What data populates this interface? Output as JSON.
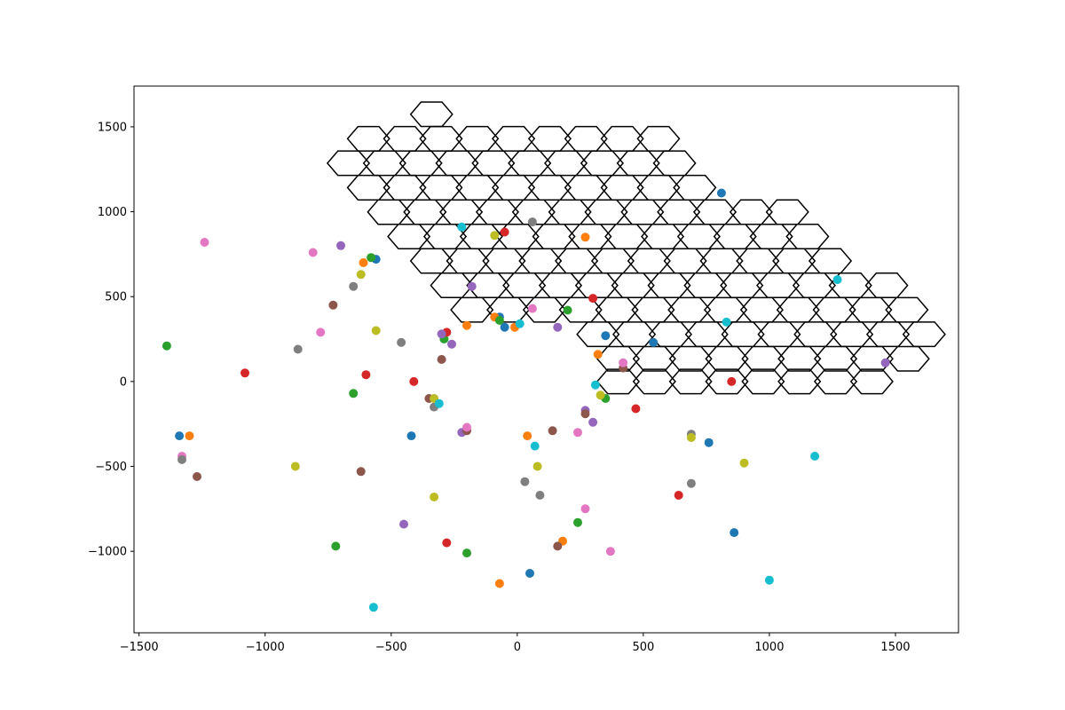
{
  "chart_data": {
    "type": "scatter",
    "title": "",
    "xlabel": "",
    "ylabel": "",
    "xlim": [
      -1520,
      1750
    ],
    "ylim": [
      -1480,
      1740
    ],
    "x_ticks": [
      -1500,
      -1000,
      -500,
      0,
      500,
      1000,
      1500
    ],
    "x_tick_labels": [
      "−1500",
      "−1000",
      "−500",
      "0",
      "500",
      "1000",
      "1500"
    ],
    "y_ticks": [
      -1000,
      -500,
      0,
      500,
      1000,
      1500
    ],
    "y_tick_labels": [
      "−1000",
      "−500",
      "0",
      "500",
      "1000",
      "1500"
    ],
    "grid": false,
    "legend": "none",
    "overlay": {
      "type": "hexagonal-grid",
      "stroke_color": "#000000",
      "hex_radius": 83,
      "hex_origin": [
        -590,
        1430
      ],
      "rows": [
        {
          "y": 1574,
          "x_start": -340,
          "x_end": -340
        },
        {
          "y": 1430,
          "x_start": -590,
          "x_end": 500
        },
        {
          "y": 1286,
          "x_start": -670,
          "x_end": 580
        },
        {
          "y": 1142,
          "x_start": -590,
          "x_end": 750
        },
        {
          "y": 998,
          "x_start": -510,
          "x_end": 1080
        },
        {
          "y": 854,
          "x_start": -430,
          "x_end": 1160
        },
        {
          "y": 710,
          "x_start": -340,
          "x_end": 1240
        },
        {
          "y": 566,
          "x_start": -260,
          "x_end": 1410
        },
        {
          "y": 422,
          "x_start": -180,
          "x_end": 1490
        },
        {
          "y": 278,
          "x_start": 320,
          "x_end": 1570
        },
        {
          "y": 134,
          "x_start": 400,
          "x_end": 1490
        },
        {
          "y": 0,
          "x_start": 400,
          "x_end": 1410
        }
      ]
    },
    "points": [
      {
        "x": 810,
        "y": 1110,
        "color": "#1f77b4"
      },
      {
        "x": -560,
        "y": 720,
        "color": "#1f77b4"
      },
      {
        "x": -70,
        "y": 380,
        "color": "#1f77b4"
      },
      {
        "x": -50,
        "y": 320,
        "color": "#1f77b4"
      },
      {
        "x": 350,
        "y": 270,
        "color": "#1f77b4"
      },
      {
        "x": 540,
        "y": 230,
        "color": "#1f77b4"
      },
      {
        "x": -1340,
        "y": -320,
        "color": "#1f77b4"
      },
      {
        "x": -420,
        "y": -320,
        "color": "#1f77b4"
      },
      {
        "x": 760,
        "y": -360,
        "color": "#1f77b4"
      },
      {
        "x": 860,
        "y": -890,
        "color": "#1f77b4"
      },
      {
        "x": 50,
        "y": -1130,
        "color": "#1f77b4"
      },
      {
        "x": 270,
        "y": 850,
        "color": "#ff7f0e"
      },
      {
        "x": -610,
        "y": 700,
        "color": "#ff7f0e"
      },
      {
        "x": -200,
        "y": 330,
        "color": "#ff7f0e"
      },
      {
        "x": -90,
        "y": 380,
        "color": "#ff7f0e"
      },
      {
        "x": -10,
        "y": 320,
        "color": "#ff7f0e"
      },
      {
        "x": 320,
        "y": 160,
        "color": "#ff7f0e"
      },
      {
        "x": -1300,
        "y": -320,
        "color": "#ff7f0e"
      },
      {
        "x": 40,
        "y": -320,
        "color": "#ff7f0e"
      },
      {
        "x": 180,
        "y": -940,
        "color": "#ff7f0e"
      },
      {
        "x": -70,
        "y": -1190,
        "color": "#ff7f0e"
      },
      {
        "x": -580,
        "y": 730,
        "color": "#2ca02c"
      },
      {
        "x": -70,
        "y": 360,
        "color": "#2ca02c"
      },
      {
        "x": 200,
        "y": 420,
        "color": "#2ca02c"
      },
      {
        "x": -290,
        "y": 250,
        "color": "#2ca02c"
      },
      {
        "x": -1390,
        "y": 210,
        "color": "#2ca02c"
      },
      {
        "x": -650,
        "y": -70,
        "color": "#2ca02c"
      },
      {
        "x": 350,
        "y": -100,
        "color": "#2ca02c"
      },
      {
        "x": 240,
        "y": -830,
        "color": "#2ca02c"
      },
      {
        "x": -720,
        "y": -970,
        "color": "#2ca02c"
      },
      {
        "x": -200,
        "y": -1010,
        "color": "#2ca02c"
      },
      {
        "x": -50,
        "y": 880,
        "color": "#d62728"
      },
      {
        "x": 300,
        "y": 490,
        "color": "#d62728"
      },
      {
        "x": -280,
        "y": 290,
        "color": "#d62728"
      },
      {
        "x": -1080,
        "y": 50,
        "color": "#d62728"
      },
      {
        "x": -600,
        "y": 40,
        "color": "#d62728"
      },
      {
        "x": -410,
        "y": 0,
        "color": "#d62728"
      },
      {
        "x": 850,
        "y": 0,
        "color": "#d62728"
      },
      {
        "x": 470,
        "y": -160,
        "color": "#d62728"
      },
      {
        "x": 640,
        "y": -670,
        "color": "#d62728"
      },
      {
        "x": -280,
        "y": -950,
        "color": "#d62728"
      },
      {
        "x": -180,
        "y": 560,
        "color": "#9467bd"
      },
      {
        "x": -700,
        "y": 800,
        "color": "#9467bd"
      },
      {
        "x": -300,
        "y": 280,
        "color": "#9467bd"
      },
      {
        "x": -260,
        "y": 220,
        "color": "#9467bd"
      },
      {
        "x": 160,
        "y": 320,
        "color": "#9467bd"
      },
      {
        "x": 1460,
        "y": 110,
        "color": "#9467bd"
      },
      {
        "x": 270,
        "y": -170,
        "color": "#9467bd"
      },
      {
        "x": 300,
        "y": -240,
        "color": "#9467bd"
      },
      {
        "x": -220,
        "y": -300,
        "color": "#9467bd"
      },
      {
        "x": -450,
        "y": -840,
        "color": "#9467bd"
      },
      {
        "x": -730,
        "y": 450,
        "color": "#8c564b"
      },
      {
        "x": -300,
        "y": 130,
        "color": "#8c564b"
      },
      {
        "x": -350,
        "y": -100,
        "color": "#8c564b"
      },
      {
        "x": -200,
        "y": -290,
        "color": "#8c564b"
      },
      {
        "x": 140,
        "y": -290,
        "color": "#8c564b"
      },
      {
        "x": 270,
        "y": -190,
        "color": "#8c564b"
      },
      {
        "x": 420,
        "y": 80,
        "color": "#8c564b"
      },
      {
        "x": -1270,
        "y": -560,
        "color": "#8c564b"
      },
      {
        "x": -620,
        "y": -530,
        "color": "#8c564b"
      },
      {
        "x": 160,
        "y": -970,
        "color": "#8c564b"
      },
      {
        "x": -1240,
        "y": 820,
        "color": "#e377c2"
      },
      {
        "x": -810,
        "y": 760,
        "color": "#e377c2"
      },
      {
        "x": -780,
        "y": 290,
        "color": "#e377c2"
      },
      {
        "x": 60,
        "y": 430,
        "color": "#e377c2"
      },
      {
        "x": 420,
        "y": 110,
        "color": "#e377c2"
      },
      {
        "x": -200,
        "y": -270,
        "color": "#e377c2"
      },
      {
        "x": 240,
        "y": -300,
        "color": "#e377c2"
      },
      {
        "x": -1330,
        "y": -440,
        "color": "#e377c2"
      },
      {
        "x": 270,
        "y": -750,
        "color": "#e377c2"
      },
      {
        "x": 370,
        "y": -1000,
        "color": "#e377c2"
      },
      {
        "x": 60,
        "y": 940,
        "color": "#7f7f7f"
      },
      {
        "x": -650,
        "y": 560,
        "color": "#7f7f7f"
      },
      {
        "x": -460,
        "y": 230,
        "color": "#7f7f7f"
      },
      {
        "x": -870,
        "y": 190,
        "color": "#7f7f7f"
      },
      {
        "x": -330,
        "y": -150,
        "color": "#7f7f7f"
      },
      {
        "x": 690,
        "y": -310,
        "color": "#7f7f7f"
      },
      {
        "x": 30,
        "y": -590,
        "color": "#7f7f7f"
      },
      {
        "x": 90,
        "y": -670,
        "color": "#7f7f7f"
      },
      {
        "x": 690,
        "y": -600,
        "color": "#7f7f7f"
      },
      {
        "x": -1330,
        "y": -460,
        "color": "#7f7f7f"
      },
      {
        "x": -90,
        "y": 860,
        "color": "#bcbd22"
      },
      {
        "x": -620,
        "y": 630,
        "color": "#bcbd22"
      },
      {
        "x": -560,
        "y": 300,
        "color": "#bcbd22"
      },
      {
        "x": -330,
        "y": -100,
        "color": "#bcbd22"
      },
      {
        "x": 330,
        "y": -80,
        "color": "#bcbd22"
      },
      {
        "x": 690,
        "y": -330,
        "color": "#bcbd22"
      },
      {
        "x": 900,
        "y": -480,
        "color": "#bcbd22"
      },
      {
        "x": 80,
        "y": -500,
        "color": "#bcbd22"
      },
      {
        "x": -880,
        "y": -500,
        "color": "#bcbd22"
      },
      {
        "x": -330,
        "y": -680,
        "color": "#bcbd22"
      },
      {
        "x": -220,
        "y": 910,
        "color": "#17becf"
      },
      {
        "x": 1270,
        "y": 600,
        "color": "#17becf"
      },
      {
        "x": 10,
        "y": 340,
        "color": "#17becf"
      },
      {
        "x": 830,
        "y": 350,
        "color": "#17becf"
      },
      {
        "x": 310,
        "y": -20,
        "color": "#17becf"
      },
      {
        "x": -310,
        "y": -130,
        "color": "#17becf"
      },
      {
        "x": 70,
        "y": -380,
        "color": "#17becf"
      },
      {
        "x": 1180,
        "y": -440,
        "color": "#17becf"
      },
      {
        "x": 1000,
        "y": -1170,
        "color": "#17becf"
      },
      {
        "x": -570,
        "y": -1330,
        "color": "#17becf"
      }
    ]
  }
}
